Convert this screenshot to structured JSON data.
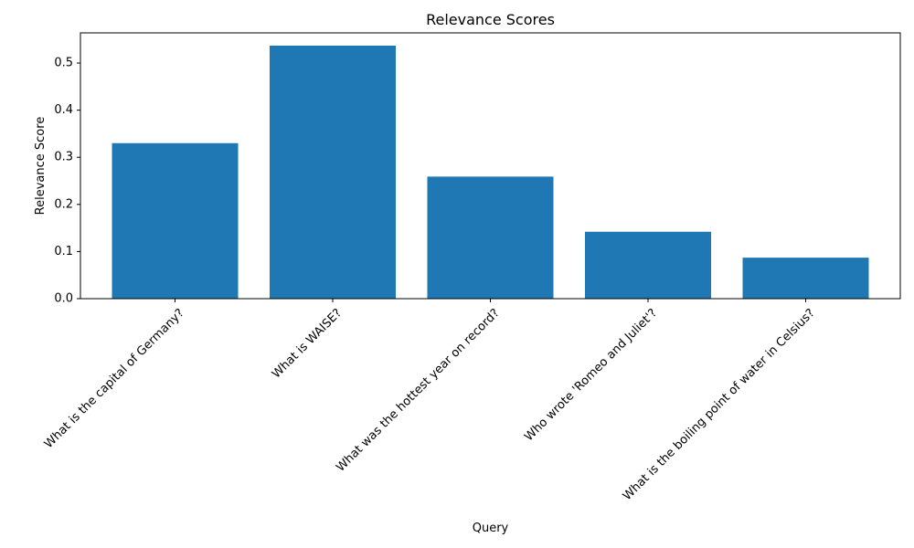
{
  "chart_data": {
    "type": "bar",
    "title": "Relevance Scores",
    "xlabel": "Query",
    "ylabel": "Relevance Score",
    "categories": [
      "What is the capital of Germany?",
      "What is WAISE?",
      "What was the hottest year on record?",
      "Who wrote 'Romeo and Juliet'?",
      "What is the boiling point of water in Celsius?"
    ],
    "values": [
      0.33,
      0.537,
      0.259,
      0.142,
      0.087
    ],
    "ylim": [
      0,
      0.564
    ],
    "yticks": [
      0.0,
      0.1,
      0.2,
      0.3,
      0.4,
      0.5
    ],
    "ytick_labels": [
      "0.0",
      "0.1",
      "0.2",
      "0.3",
      "0.4",
      "0.5"
    ],
    "grid": false,
    "legend": "none",
    "bar_color": "#1f77b4"
  }
}
